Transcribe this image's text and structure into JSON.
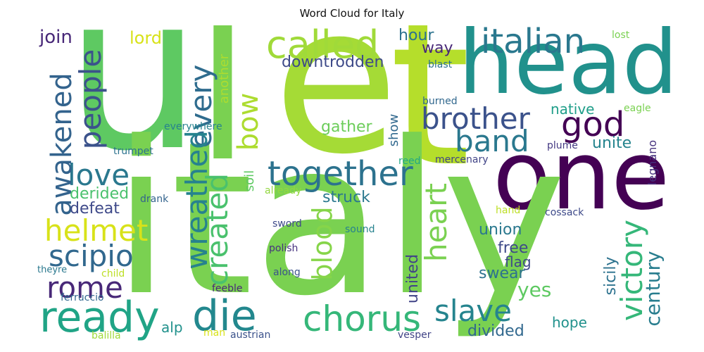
{
  "title": "Word Cloud for Italy",
  "words": [
    {
      "text": "u",
      "color": "#5ec962"
    },
    {
      "text": "l",
      "color": "#7ad151"
    },
    {
      "text": "e",
      "color": "#a5db36"
    },
    {
      "text": "t",
      "color": "#b5de2b"
    },
    {
      "text": "head",
      "color": "#21918c"
    },
    {
      "text": "one",
      "color": "#440154"
    },
    {
      "text": "italy",
      "color": "#7ad151"
    },
    {
      "text": "called",
      "color": "#a0da39"
    },
    {
      "text": "italian",
      "color": "#2a788e"
    },
    {
      "text": "together",
      "color": "#2c728e"
    },
    {
      "text": "brother",
      "color": "#3b528b"
    },
    {
      "text": "god",
      "color": "#440154"
    },
    {
      "text": "band",
      "color": "#2a788e"
    },
    {
      "text": "people",
      "color": "#3b528b"
    },
    {
      "text": "awakened",
      "color": "#33638d"
    },
    {
      "text": "every",
      "color": "#2f6c8e"
    },
    {
      "text": "bow",
      "color": "#addc30"
    },
    {
      "text": "wreathed",
      "color": "#26828e"
    },
    {
      "text": "created",
      "color": "#4ac16d"
    },
    {
      "text": "love",
      "color": "#2a788e"
    },
    {
      "text": "helmet",
      "color": "#d8e219"
    },
    {
      "text": "scipio",
      "color": "#31688e"
    },
    {
      "text": "rome",
      "color": "#482878"
    },
    {
      "text": "ready",
      "color": "#20a486"
    },
    {
      "text": "die",
      "color": "#23888e"
    },
    {
      "text": "chorus",
      "color": "#35b779"
    },
    {
      "text": "slave",
      "color": "#25848e"
    },
    {
      "text": "victory",
      "color": "#35b779"
    },
    {
      "text": "heart",
      "color": "#7ad151"
    },
    {
      "text": "blood",
      "color": "#86d549"
    },
    {
      "text": "century",
      "color": "#287d8e"
    },
    {
      "text": "sicily",
      "color": "#2c728e"
    },
    {
      "text": "united",
      "color": "#414487"
    },
    {
      "text": "yes",
      "color": "#5ec962"
    },
    {
      "text": "join",
      "color": "#482878"
    },
    {
      "text": "lord",
      "color": "#d8e219"
    },
    {
      "text": "hour",
      "color": "#2c728e"
    },
    {
      "text": "way",
      "color": "#482878"
    },
    {
      "text": "downtrodden",
      "color": "#3e4a89"
    },
    {
      "text": "lost",
      "color": "#7ad151"
    },
    {
      "text": "blast",
      "color": "#2c728e"
    },
    {
      "text": "another",
      "color": "#addc30"
    },
    {
      "text": "native",
      "color": "#1f9e89"
    },
    {
      "text": "eagle",
      "color": "#7ad151"
    },
    {
      "text": "burned",
      "color": "#31688e"
    },
    {
      "text": "show",
      "color": "#31688e"
    },
    {
      "text": "gather",
      "color": "#6ccd5a"
    },
    {
      "text": "unite",
      "color": "#25848e"
    },
    {
      "text": "everywhere",
      "color": "#26828e"
    },
    {
      "text": "plume",
      "color": "#443983"
    },
    {
      "text": "legnano",
      "color": "#46327e"
    },
    {
      "text": "trumpet",
      "color": "#2c728e"
    },
    {
      "text": "reed",
      "color": "#22a884"
    },
    {
      "text": "mercenary",
      "color": "#414487"
    },
    {
      "text": "derided",
      "color": "#4ac16d"
    },
    {
      "text": "soil",
      "color": "#5ec962"
    },
    {
      "text": "struck",
      "color": "#2a788e"
    },
    {
      "text": "already",
      "color": "#93d741"
    },
    {
      "text": "defeat",
      "color": "#3e4989"
    },
    {
      "text": "drank",
      "color": "#33638d"
    },
    {
      "text": "hand",
      "color": "#bddf26"
    },
    {
      "text": "cossack",
      "color": "#3e4a89"
    },
    {
      "text": "union",
      "color": "#2a788e"
    },
    {
      "text": "sword",
      "color": "#3e4a89"
    },
    {
      "text": "sound",
      "color": "#26828e"
    },
    {
      "text": "free",
      "color": "#3e4a89"
    },
    {
      "text": "flag",
      "color": "#3e4a89"
    },
    {
      "text": "polish",
      "color": "#46327e"
    },
    {
      "text": "swear",
      "color": "#2c728e"
    },
    {
      "text": "theyre",
      "color": "#2a788e"
    },
    {
      "text": "child",
      "color": "#bddf26"
    },
    {
      "text": "along",
      "color": "#3b528b"
    },
    {
      "text": "ferruccio",
      "color": "#31688e"
    },
    {
      "text": "feeble",
      "color": "#482878"
    },
    {
      "text": "alp",
      "color": "#21918c"
    },
    {
      "text": "hope",
      "color": "#21918c"
    },
    {
      "text": "divided",
      "color": "#31688e"
    },
    {
      "text": "balilla",
      "color": "#a0da39"
    },
    {
      "text": "man",
      "color": "#d8e219"
    },
    {
      "text": "austrian",
      "color": "#3b528b"
    },
    {
      "text": "vesper",
      "color": "#414487"
    }
  ]
}
